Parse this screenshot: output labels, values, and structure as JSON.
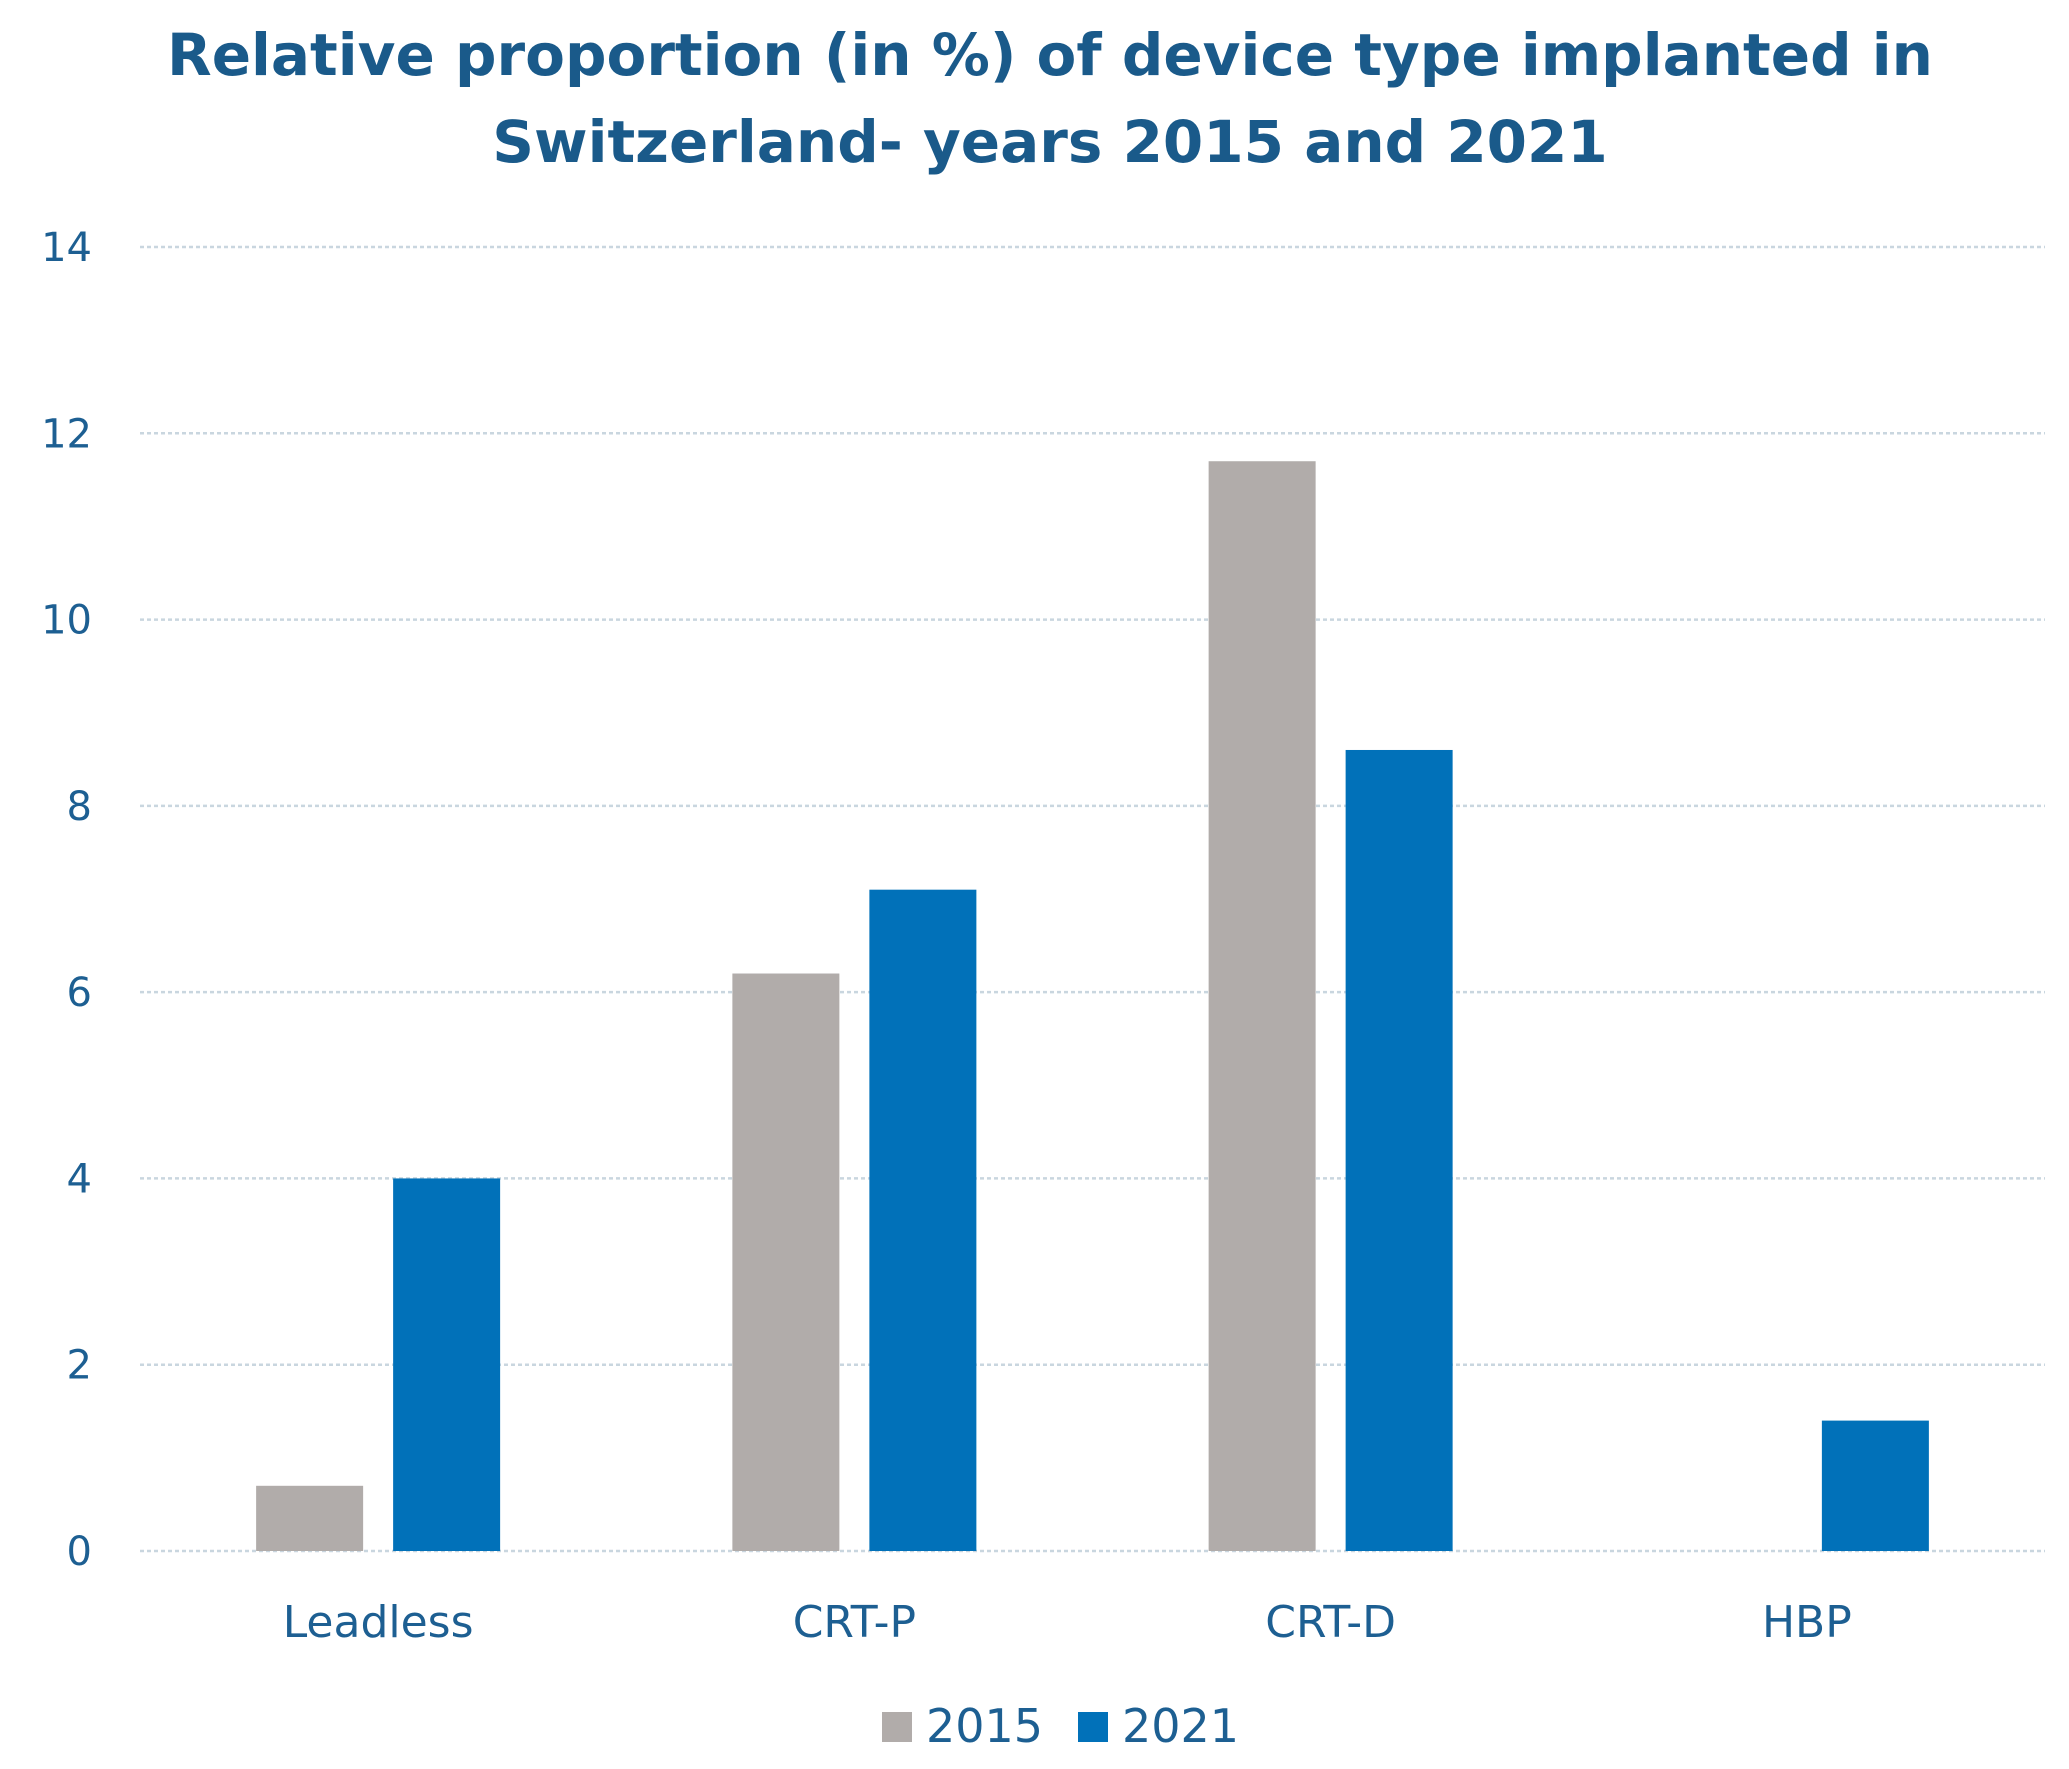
{
  "chart_data": {
    "type": "bar",
    "title_lines": [
      "Relative proportion  (in %) of device type implanted in",
      "Switzerland- years 2015 and 2021"
    ],
    "categories": [
      "Leadless",
      "CRT-P",
      "CRT-D",
      "HBP"
    ],
    "series": [
      {
        "name": "2015",
        "color": "#b1acaa",
        "values": [
          0.7,
          6.2,
          11.7,
          null
        ]
      },
      {
        "name": "2021",
        "color": "#0171b9",
        "values": [
          4.0,
          7.1,
          8.6,
          1.4
        ]
      }
    ],
    "ylim": [
      0,
      14
    ],
    "yticks": [
      "0",
      "2",
      "4",
      "6",
      "8",
      "10",
      "12",
      "14"
    ],
    "grid": true,
    "legend": "bottom-center"
  }
}
